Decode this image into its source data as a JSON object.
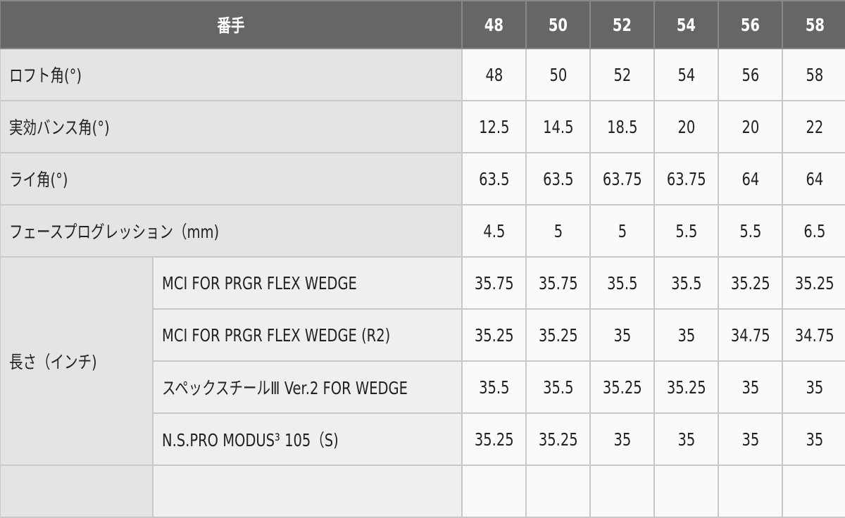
{
  "header": {
    "label": "番手",
    "columns": [
      "48",
      "50",
      "52",
      "54",
      "56",
      "58"
    ]
  },
  "rows": [
    {
      "label": "ロフト角(°)",
      "values": [
        "48",
        "50",
        "52",
        "54",
        "56",
        "58"
      ]
    },
    {
      "label": "実効バンス角(°)",
      "values": [
        "12.5",
        "14.5",
        "18.5",
        "20",
        "20",
        "22"
      ]
    },
    {
      "label": "ライ角(°)",
      "values": [
        "63.5",
        "63.5",
        "63.75",
        "63.75",
        "64",
        "64"
      ]
    },
    {
      "label": "フェースプログレッション（mm)",
      "values": [
        "4.5",
        "5",
        "5",
        "5.5",
        "5.5",
        "6.5"
      ]
    }
  ],
  "length": {
    "label": "長さ（インチ)",
    "shafts": [
      {
        "name": "MCI FOR PRGR FLEX WEDGE",
        "values": [
          "35.75",
          "35.75",
          "35.5",
          "35.5",
          "35.25",
          "35.25"
        ]
      },
      {
        "name": "MCI FOR PRGR FLEX WEDGE (R2)",
        "values": [
          "35.25",
          "35.25",
          "35",
          "35",
          "34.75",
          "34.75"
        ]
      },
      {
        "name": "スペックスチールⅢ Ver.2 FOR WEDGE",
        "values": [
          "35.5",
          "35.5",
          "35.25",
          "35.25",
          "35",
          "35"
        ]
      },
      {
        "name": "N.S.PRO MODUS³ 105（S)",
        "values": [
          "35.25",
          "35.25",
          "35",
          "35",
          "35",
          "35"
        ]
      }
    ]
  },
  "colors": {
    "header_bg": "#666666",
    "label_bg": "#e4e4e4",
    "sublabel_bg": "#efefef",
    "value_bg": "#fafafa"
  }
}
